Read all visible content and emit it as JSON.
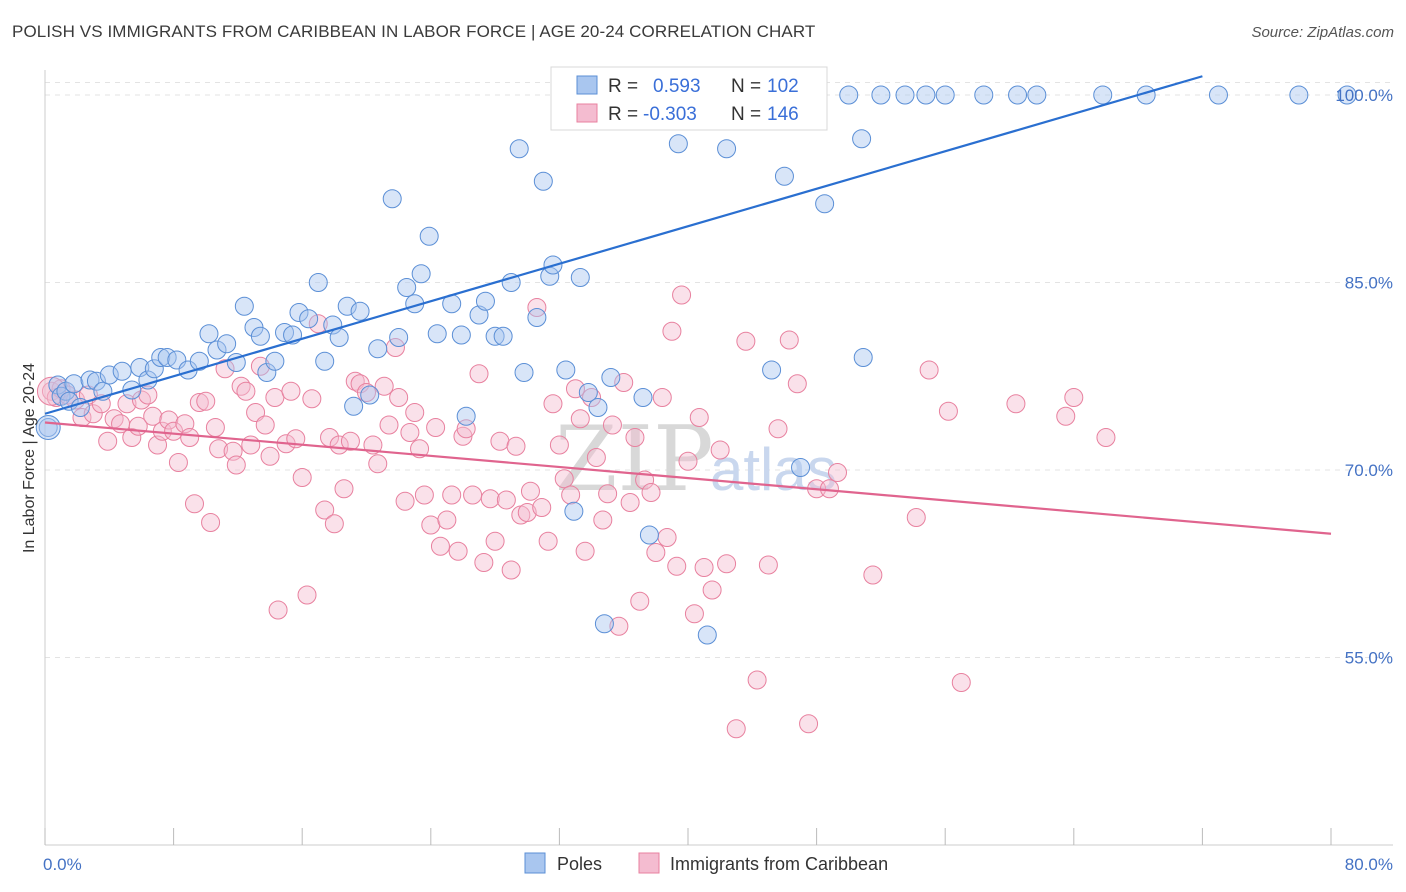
{
  "title": "POLISH VS IMMIGRANTS FROM CARIBBEAN IN LABOR FORCE | AGE 20-24 CORRELATION CHART",
  "source": "Source: ZipAtlas.com",
  "watermark": {
    "zip": "ZIP",
    "atlas": "atlas"
  },
  "colors": {
    "blue_fill": "#a9c6ef",
    "blue_stroke": "#5b8fd6",
    "blue_line": "#2a6fd0",
    "pink_fill": "#f4bcd0",
    "pink_stroke": "#e8819f",
    "pink_line": "#e0648e",
    "tick_text": "#4472c4",
    "grid": "#e3e3e3"
  },
  "legend": {
    "rows": [
      {
        "r_label": "R =",
        "r_value": "0.593",
        "n_label": "N =",
        "n_value": "102"
      },
      {
        "r_label": "R =",
        "r_value": "-0.303",
        "n_label": "N =",
        "n_value": "146"
      }
    ]
  },
  "bottom_legend": [
    "Poles",
    "Immigrants from Caribbean"
  ],
  "chart_data": {
    "type": "scatter",
    "title": "POLISH VS IMMIGRANTS FROM CARIBBEAN IN LABOR FORCE | AGE 20-24 CORRELATION CHART",
    "xlabel": "",
    "ylabel": "In Labor Force | Age 20-24",
    "xlim": [
      0,
      80
    ],
    "ylim": [
      40,
      102
    ],
    "x_tick_labels": [
      "0.0%",
      "80.0%"
    ],
    "y_ticks": [
      55,
      70,
      85,
      100
    ],
    "y_tick_labels": [
      "55.0%",
      "70.0%",
      "85.0%",
      "100.0%"
    ],
    "grid": true,
    "legend_position": "top-center",
    "series": [
      {
        "name": "Poles",
        "r": 0.593,
        "n": 102,
        "trend": [
          [
            0,
            74.5
          ],
          [
            72,
            101.5
          ]
        ],
        "points": [
          [
            0.2,
            73.4
          ],
          [
            0.8,
            76.8
          ],
          [
            1.0,
            75.9
          ],
          [
            1.3,
            76.3
          ],
          [
            1.5,
            75.5
          ],
          [
            1.8,
            76.9
          ],
          [
            2.2,
            75.0
          ],
          [
            2.8,
            77.2
          ],
          [
            3.2,
            77.1
          ],
          [
            3.6,
            76.3
          ],
          [
            4.0,
            77.6
          ],
          [
            4.8,
            77.9
          ],
          [
            5.4,
            76.4
          ],
          [
            5.9,
            78.2
          ],
          [
            6.4,
            77.2
          ],
          [
            6.8,
            78.1
          ],
          [
            7.2,
            79.0
          ],
          [
            7.6,
            79.0
          ],
          [
            8.2,
            78.8
          ],
          [
            8.9,
            78.0
          ],
          [
            9.6,
            78.7
          ],
          [
            10.2,
            80.9
          ],
          [
            10.7,
            79.6
          ],
          [
            11.3,
            80.1
          ],
          [
            11.9,
            78.6
          ],
          [
            12.4,
            83.1
          ],
          [
            13.0,
            81.4
          ],
          [
            13.4,
            80.7
          ],
          [
            13.8,
            77.8
          ],
          [
            14.3,
            78.7
          ],
          [
            14.9,
            81.0
          ],
          [
            15.4,
            80.8
          ],
          [
            15.8,
            82.6
          ],
          [
            16.4,
            82.1
          ],
          [
            17.0,
            85.0
          ],
          [
            17.4,
            78.7
          ],
          [
            17.9,
            81.6
          ],
          [
            18.3,
            80.6
          ],
          [
            18.8,
            83.1
          ],
          [
            19.2,
            75.1
          ],
          [
            19.6,
            82.7
          ],
          [
            20.2,
            76.0
          ],
          [
            20.7,
            79.7
          ],
          [
            21.6,
            91.7
          ],
          [
            22.0,
            80.6
          ],
          [
            22.5,
            84.6
          ],
          [
            23.0,
            83.3
          ],
          [
            23.4,
            85.7
          ],
          [
            23.9,
            88.7
          ],
          [
            24.4,
            80.9
          ],
          [
            25.3,
            83.3
          ],
          [
            25.9,
            80.8
          ],
          [
            26.2,
            74.3
          ],
          [
            27.0,
            82.4
          ],
          [
            27.4,
            83.5
          ],
          [
            28.0,
            80.7
          ],
          [
            28.5,
            80.7
          ],
          [
            29.0,
            85.0
          ],
          [
            29.5,
            95.7
          ],
          [
            29.8,
            77.8
          ],
          [
            30.6,
            82.2
          ],
          [
            31.0,
            93.1
          ],
          [
            31.4,
            85.5
          ],
          [
            31.6,
            86.4
          ],
          [
            32.4,
            78.0
          ],
          [
            32.9,
            66.7
          ],
          [
            33.3,
            85.4
          ],
          [
            33.8,
            76.2
          ],
          [
            34.4,
            75.0
          ],
          [
            34.8,
            57.7
          ],
          [
            35.2,
            77.4
          ],
          [
            36.2,
            100.0
          ],
          [
            37.2,
            75.8
          ],
          [
            37.6,
            64.8
          ],
          [
            38.4,
            100.0
          ],
          [
            39.4,
            96.1
          ],
          [
            40.3,
            100.0
          ],
          [
            41.0,
            100.0
          ],
          [
            41.2,
            56.8
          ],
          [
            42.4,
            95.7
          ],
          [
            44.0,
            100.0
          ],
          [
            45.2,
            78.0
          ],
          [
            46.0,
            93.5
          ],
          [
            46.5,
            100.0
          ],
          [
            47.0,
            70.2
          ],
          [
            47.8,
            100.0
          ],
          [
            48.5,
            91.3
          ],
          [
            50.0,
            100.0
          ],
          [
            50.8,
            96.5
          ],
          [
            50.9,
            79.0
          ],
          [
            52.0,
            100.0
          ],
          [
            53.5,
            100.0
          ],
          [
            54.8,
            100.0
          ],
          [
            56.0,
            100.0
          ],
          [
            58.4,
            100.0
          ],
          [
            60.5,
            100.0
          ],
          [
            61.7,
            100.0
          ],
          [
            65.8,
            100.0
          ],
          [
            68.5,
            100.0
          ],
          [
            73.0,
            100.0
          ],
          [
            78.0,
            100.0
          ],
          [
            81.0,
            100.0
          ]
        ]
      },
      {
        "name": "Immigrants from Caribbean",
        "r": -0.303,
        "n": 146,
        "trend": [
          [
            0,
            73.8
          ],
          [
            80,
            64.9
          ]
        ],
        "points": [
          [
            0.4,
            76.3
          ],
          [
            0.7,
            75.8
          ],
          [
            1.0,
            76.5
          ],
          [
            1.4,
            76.0
          ],
          [
            1.9,
            75.6
          ],
          [
            2.3,
            74.2
          ],
          [
            2.7,
            76.0
          ],
          [
            3.0,
            74.5
          ],
          [
            3.5,
            75.3
          ],
          [
            3.9,
            72.3
          ],
          [
            4.3,
            74.1
          ],
          [
            4.7,
            73.7
          ],
          [
            5.1,
            75.3
          ],
          [
            5.4,
            72.6
          ],
          [
            5.8,
            73.5
          ],
          [
            6.0,
            75.6
          ],
          [
            6.4,
            76.0
          ],
          [
            6.7,
            74.3
          ],
          [
            7.0,
            72.0
          ],
          [
            7.3,
            73.1
          ],
          [
            7.7,
            74.0
          ],
          [
            8.0,
            73.1
          ],
          [
            8.3,
            70.6
          ],
          [
            8.7,
            73.7
          ],
          [
            9.0,
            72.6
          ],
          [
            9.3,
            67.3
          ],
          [
            9.6,
            75.4
          ],
          [
            10.0,
            75.5
          ],
          [
            10.3,
            65.8
          ],
          [
            10.6,
            73.4
          ],
          [
            10.8,
            71.7
          ],
          [
            11.2,
            78.1
          ],
          [
            11.7,
            71.5
          ],
          [
            11.9,
            70.4
          ],
          [
            12.2,
            76.7
          ],
          [
            12.5,
            76.3
          ],
          [
            12.8,
            72.0
          ],
          [
            13.1,
            74.6
          ],
          [
            13.4,
            78.3
          ],
          [
            13.7,
            73.6
          ],
          [
            14.0,
            71.1
          ],
          [
            14.3,
            75.8
          ],
          [
            14.5,
            58.8
          ],
          [
            15.0,
            72.1
          ],
          [
            15.3,
            76.3
          ],
          [
            15.6,
            72.5
          ],
          [
            16.0,
            69.4
          ],
          [
            16.3,
            60.0
          ],
          [
            16.6,
            75.7
          ],
          [
            17.0,
            81.7
          ],
          [
            17.4,
            66.8
          ],
          [
            17.7,
            72.6
          ],
          [
            18.0,
            65.7
          ],
          [
            18.3,
            72.0
          ],
          [
            18.6,
            68.5
          ],
          [
            19.0,
            72.3
          ],
          [
            19.3,
            77.1
          ],
          [
            19.6,
            76.9
          ],
          [
            20.0,
            76.2
          ],
          [
            20.4,
            72.0
          ],
          [
            20.7,
            70.5
          ],
          [
            21.1,
            76.7
          ],
          [
            21.4,
            73.6
          ],
          [
            21.8,
            79.8
          ],
          [
            22.0,
            75.8
          ],
          [
            22.4,
            67.5
          ],
          [
            22.7,
            73.0
          ],
          [
            23.0,
            74.6
          ],
          [
            23.3,
            71.7
          ],
          [
            23.6,
            68.0
          ],
          [
            24.0,
            65.6
          ],
          [
            24.3,
            73.4
          ],
          [
            24.6,
            63.9
          ],
          [
            25.0,
            66.0
          ],
          [
            25.3,
            68.0
          ],
          [
            25.7,
            63.5
          ],
          [
            26.0,
            72.7
          ],
          [
            26.2,
            73.3
          ],
          [
            26.6,
            68.0
          ],
          [
            27.0,
            77.7
          ],
          [
            27.3,
            62.6
          ],
          [
            27.7,
            67.7
          ],
          [
            28.0,
            64.3
          ],
          [
            28.3,
            72.3
          ],
          [
            28.7,
            67.6
          ],
          [
            29.0,
            62.0
          ],
          [
            29.3,
            71.9
          ],
          [
            29.6,
            66.4
          ],
          [
            30.0,
            66.6
          ],
          [
            30.2,
            68.3
          ],
          [
            30.6,
            83.0
          ],
          [
            30.9,
            67.0
          ],
          [
            31.3,
            64.3
          ],
          [
            31.6,
            75.3
          ],
          [
            32.0,
            72.0
          ],
          [
            32.3,
            69.3
          ],
          [
            32.7,
            68.0
          ],
          [
            33.0,
            76.5
          ],
          [
            33.3,
            74.1
          ],
          [
            33.6,
            63.5
          ],
          [
            34.0,
            75.8
          ],
          [
            34.3,
            71.0
          ],
          [
            34.7,
            66.0
          ],
          [
            35.0,
            68.1
          ],
          [
            35.3,
            73.6
          ],
          [
            35.7,
            57.5
          ],
          [
            36.0,
            77.0
          ],
          [
            36.4,
            67.4
          ],
          [
            36.7,
            72.6
          ],
          [
            37.0,
            59.5
          ],
          [
            37.3,
            69.2
          ],
          [
            37.7,
            68.2
          ],
          [
            38.0,
            63.4
          ],
          [
            38.4,
            75.8
          ],
          [
            38.7,
            64.6
          ],
          [
            39.0,
            81.1
          ],
          [
            39.3,
            62.3
          ],
          [
            39.6,
            84.0
          ],
          [
            40.0,
            70.7
          ],
          [
            40.4,
            58.5
          ],
          [
            40.7,
            74.2
          ],
          [
            41.0,
            62.2
          ],
          [
            41.5,
            60.4
          ],
          [
            42.0,
            71.6
          ],
          [
            42.4,
            62.5
          ],
          [
            43.0,
            49.3
          ],
          [
            43.6,
            80.3
          ],
          [
            44.3,
            53.2
          ],
          [
            45.0,
            62.4
          ],
          [
            45.6,
            73.3
          ],
          [
            46.3,
            80.4
          ],
          [
            46.8,
            76.9
          ],
          [
            47.5,
            49.7
          ],
          [
            48.0,
            68.5
          ],
          [
            48.8,
            68.5
          ],
          [
            49.3,
            69.8
          ],
          [
            51.5,
            61.6
          ],
          [
            54.2,
            66.2
          ],
          [
            55.0,
            78.0
          ],
          [
            56.2,
            74.7
          ],
          [
            57.0,
            53.0
          ],
          [
            60.4,
            75.3
          ],
          [
            63.5,
            74.3
          ],
          [
            64.0,
            75.8
          ],
          [
            66.0,
            72.6
          ]
        ]
      }
    ]
  }
}
